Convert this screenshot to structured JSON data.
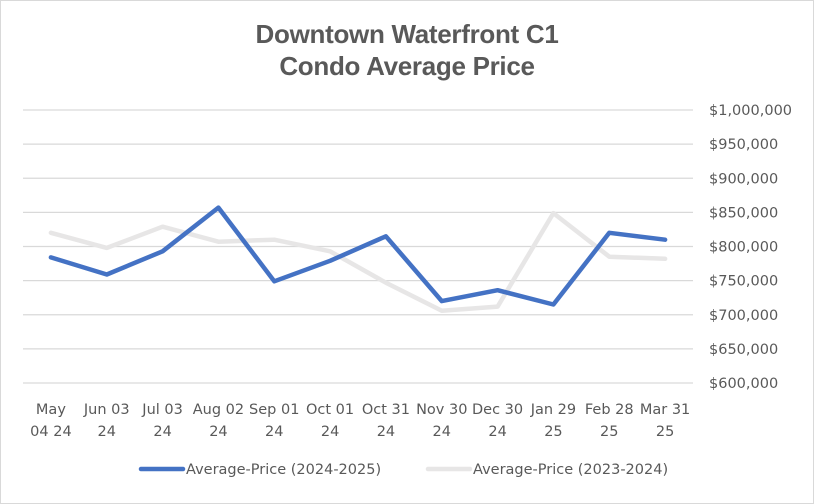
{
  "chart_data": {
    "type": "line",
    "title": [
      "Downtown Waterfront C1",
      "Condo Average Price"
    ],
    "xlabel": "",
    "ylabel": "",
    "categories": [
      [
        "May",
        "04 24"
      ],
      [
        "Jun 03",
        "24"
      ],
      [
        "Jul 03",
        "24"
      ],
      [
        "Aug 02",
        "24"
      ],
      [
        "Sep 01",
        "24"
      ],
      [
        "Oct 01",
        "24"
      ],
      [
        "Oct 31",
        "24"
      ],
      [
        "Nov 30",
        "24"
      ],
      [
        "Dec 30",
        "24"
      ],
      [
        "Jan 29",
        "25"
      ],
      [
        "Feb 28",
        "25"
      ],
      [
        "Mar 31",
        "25"
      ]
    ],
    "ylim": [
      600000,
      1000000
    ],
    "ytick_step": 50000,
    "ytick_labels": [
      "$600,000",
      "$650,000",
      "$700,000",
      "$750,000",
      "$800,000",
      "$850,000",
      "$900,000",
      "$950,000",
      "$1,000,000"
    ],
    "y_axis_side": "right",
    "grid": true,
    "legend_position": "bottom",
    "series": [
      {
        "name": "Average-Price (2024-2025)",
        "color": "#4472c4",
        "values": [
          784000,
          759000,
          793000,
          857000,
          749000,
          779000,
          815000,
          720000,
          736000,
          715000,
          820000,
          810000
        ]
      },
      {
        "name": "Average-Price (2023-2024)",
        "color": "#e7e6e6",
        "values": [
          820000,
          798000,
          829000,
          807000,
          810000,
          793000,
          747000,
          706000,
          712000,
          849000,
          785000,
          782000
        ]
      }
    ]
  }
}
